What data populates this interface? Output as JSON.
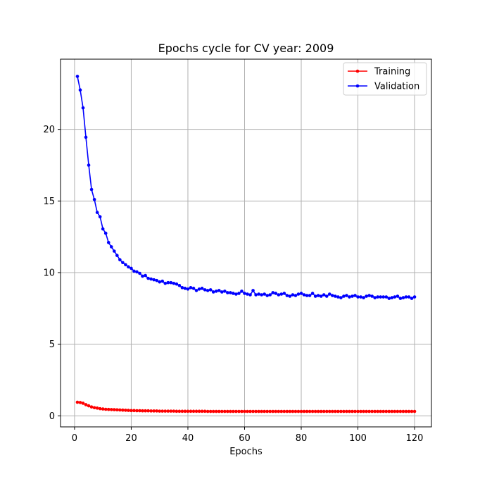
{
  "chart_data": {
    "type": "line",
    "title": "Epochs cycle for CV year: 2009",
    "xlabel": "Epochs",
    "ylabel": "",
    "xlim": [
      -4.95,
      125.95
    ],
    "ylim": [
      -0.77,
      24.9
    ],
    "xticks": [
      0,
      20,
      40,
      60,
      80,
      100,
      120
    ],
    "yticks": [
      0,
      5,
      10,
      15,
      20
    ],
    "grid": true,
    "legend_position": "top-right",
    "x_start": 1,
    "x_end": 120,
    "series": [
      {
        "name": "Training",
        "color": "#ff0000",
        "values": [
          0.95,
          0.93,
          0.88,
          0.78,
          0.7,
          0.62,
          0.57,
          0.54,
          0.5,
          0.48,
          0.46,
          0.45,
          0.44,
          0.43,
          0.42,
          0.41,
          0.4,
          0.39,
          0.38,
          0.37,
          0.37,
          0.36,
          0.36,
          0.35,
          0.35,
          0.35,
          0.34,
          0.34,
          0.34,
          0.33,
          0.33,
          0.33,
          0.33,
          0.33,
          0.33,
          0.32,
          0.32,
          0.32,
          0.32,
          0.32,
          0.32,
          0.32,
          0.32,
          0.32,
          0.32,
          0.32,
          0.31,
          0.31,
          0.31,
          0.31,
          0.31,
          0.31,
          0.31,
          0.31,
          0.31,
          0.31,
          0.31,
          0.31,
          0.31,
          0.31,
          0.31,
          0.31,
          0.31,
          0.31,
          0.31,
          0.31,
          0.31,
          0.31,
          0.31,
          0.31,
          0.31,
          0.31,
          0.31,
          0.31,
          0.31,
          0.31,
          0.31,
          0.31,
          0.31,
          0.31,
          0.31,
          0.31,
          0.31,
          0.31,
          0.31,
          0.31,
          0.31,
          0.31,
          0.31,
          0.31,
          0.31,
          0.31,
          0.31,
          0.31,
          0.31,
          0.31,
          0.31,
          0.31,
          0.31,
          0.31,
          0.31,
          0.31,
          0.31,
          0.31,
          0.31,
          0.31,
          0.31,
          0.31,
          0.31,
          0.31,
          0.31,
          0.31,
          0.31,
          0.31,
          0.31,
          0.31,
          0.31,
          0.31,
          0.31,
          0.31
        ]
      },
      {
        "name": "Validation",
        "color": "#0000ff",
        "values": [
          23.7,
          22.75,
          21.5,
          19.45,
          17.5,
          15.8,
          15.1,
          14.2,
          13.9,
          13.05,
          12.75,
          12.1,
          11.8,
          11.5,
          11.2,
          10.9,
          10.7,
          10.55,
          10.4,
          10.3,
          10.1,
          10.05,
          9.95,
          9.75,
          9.8,
          9.6,
          9.55,
          9.5,
          9.45,
          9.35,
          9.4,
          9.25,
          9.3,
          9.3,
          9.25,
          9.2,
          9.1,
          8.95,
          8.9,
          8.85,
          8.95,
          8.9,
          8.75,
          8.85,
          8.9,
          8.8,
          8.75,
          8.8,
          8.65,
          8.7,
          8.75,
          8.65,
          8.7,
          8.6,
          8.6,
          8.55,
          8.5,
          8.55,
          8.7,
          8.55,
          8.5,
          8.45,
          8.75,
          8.45,
          8.5,
          8.45,
          8.5,
          8.4,
          8.45,
          8.6,
          8.55,
          8.45,
          8.5,
          8.55,
          8.4,
          8.35,
          8.45,
          8.4,
          8.5,
          8.55,
          8.45,
          8.4,
          8.4,
          8.55,
          8.35,
          8.4,
          8.35,
          8.45,
          8.35,
          8.5,
          8.4,
          8.35,
          8.3,
          8.25,
          8.35,
          8.4,
          8.3,
          8.35,
          8.4,
          8.3,
          8.3,
          8.25,
          8.35,
          8.4,
          8.35,
          8.25,
          8.3,
          8.3,
          8.3,
          8.3,
          8.2,
          8.25,
          8.3,
          8.35,
          8.2,
          8.25,
          8.3,
          8.3,
          8.2,
          8.3
        ]
      }
    ]
  }
}
